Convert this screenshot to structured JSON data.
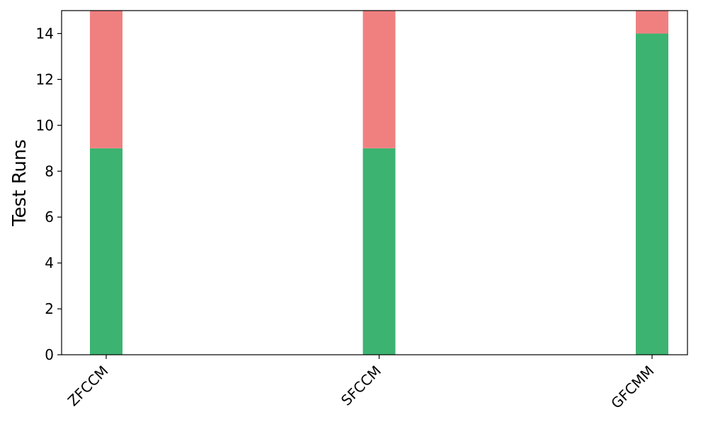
{
  "chart_data": {
    "type": "bar",
    "stacked": true,
    "categories": [
      "ZFCCM",
      "SFCCM",
      "GFCMM"
    ],
    "series": [
      {
        "values": [
          9,
          9,
          14
        ],
        "color": "#3cb371"
      },
      {
        "values": [
          6,
          6,
          1
        ],
        "color": "#f08080"
      }
    ],
    "title": "",
    "xlabel": "",
    "ylabel": "Test Runs",
    "ylim": [
      0,
      15
    ],
    "yticks": [
      0,
      2,
      4,
      6,
      8,
      10,
      12,
      14
    ],
    "grid": false,
    "legend": "none"
  }
}
